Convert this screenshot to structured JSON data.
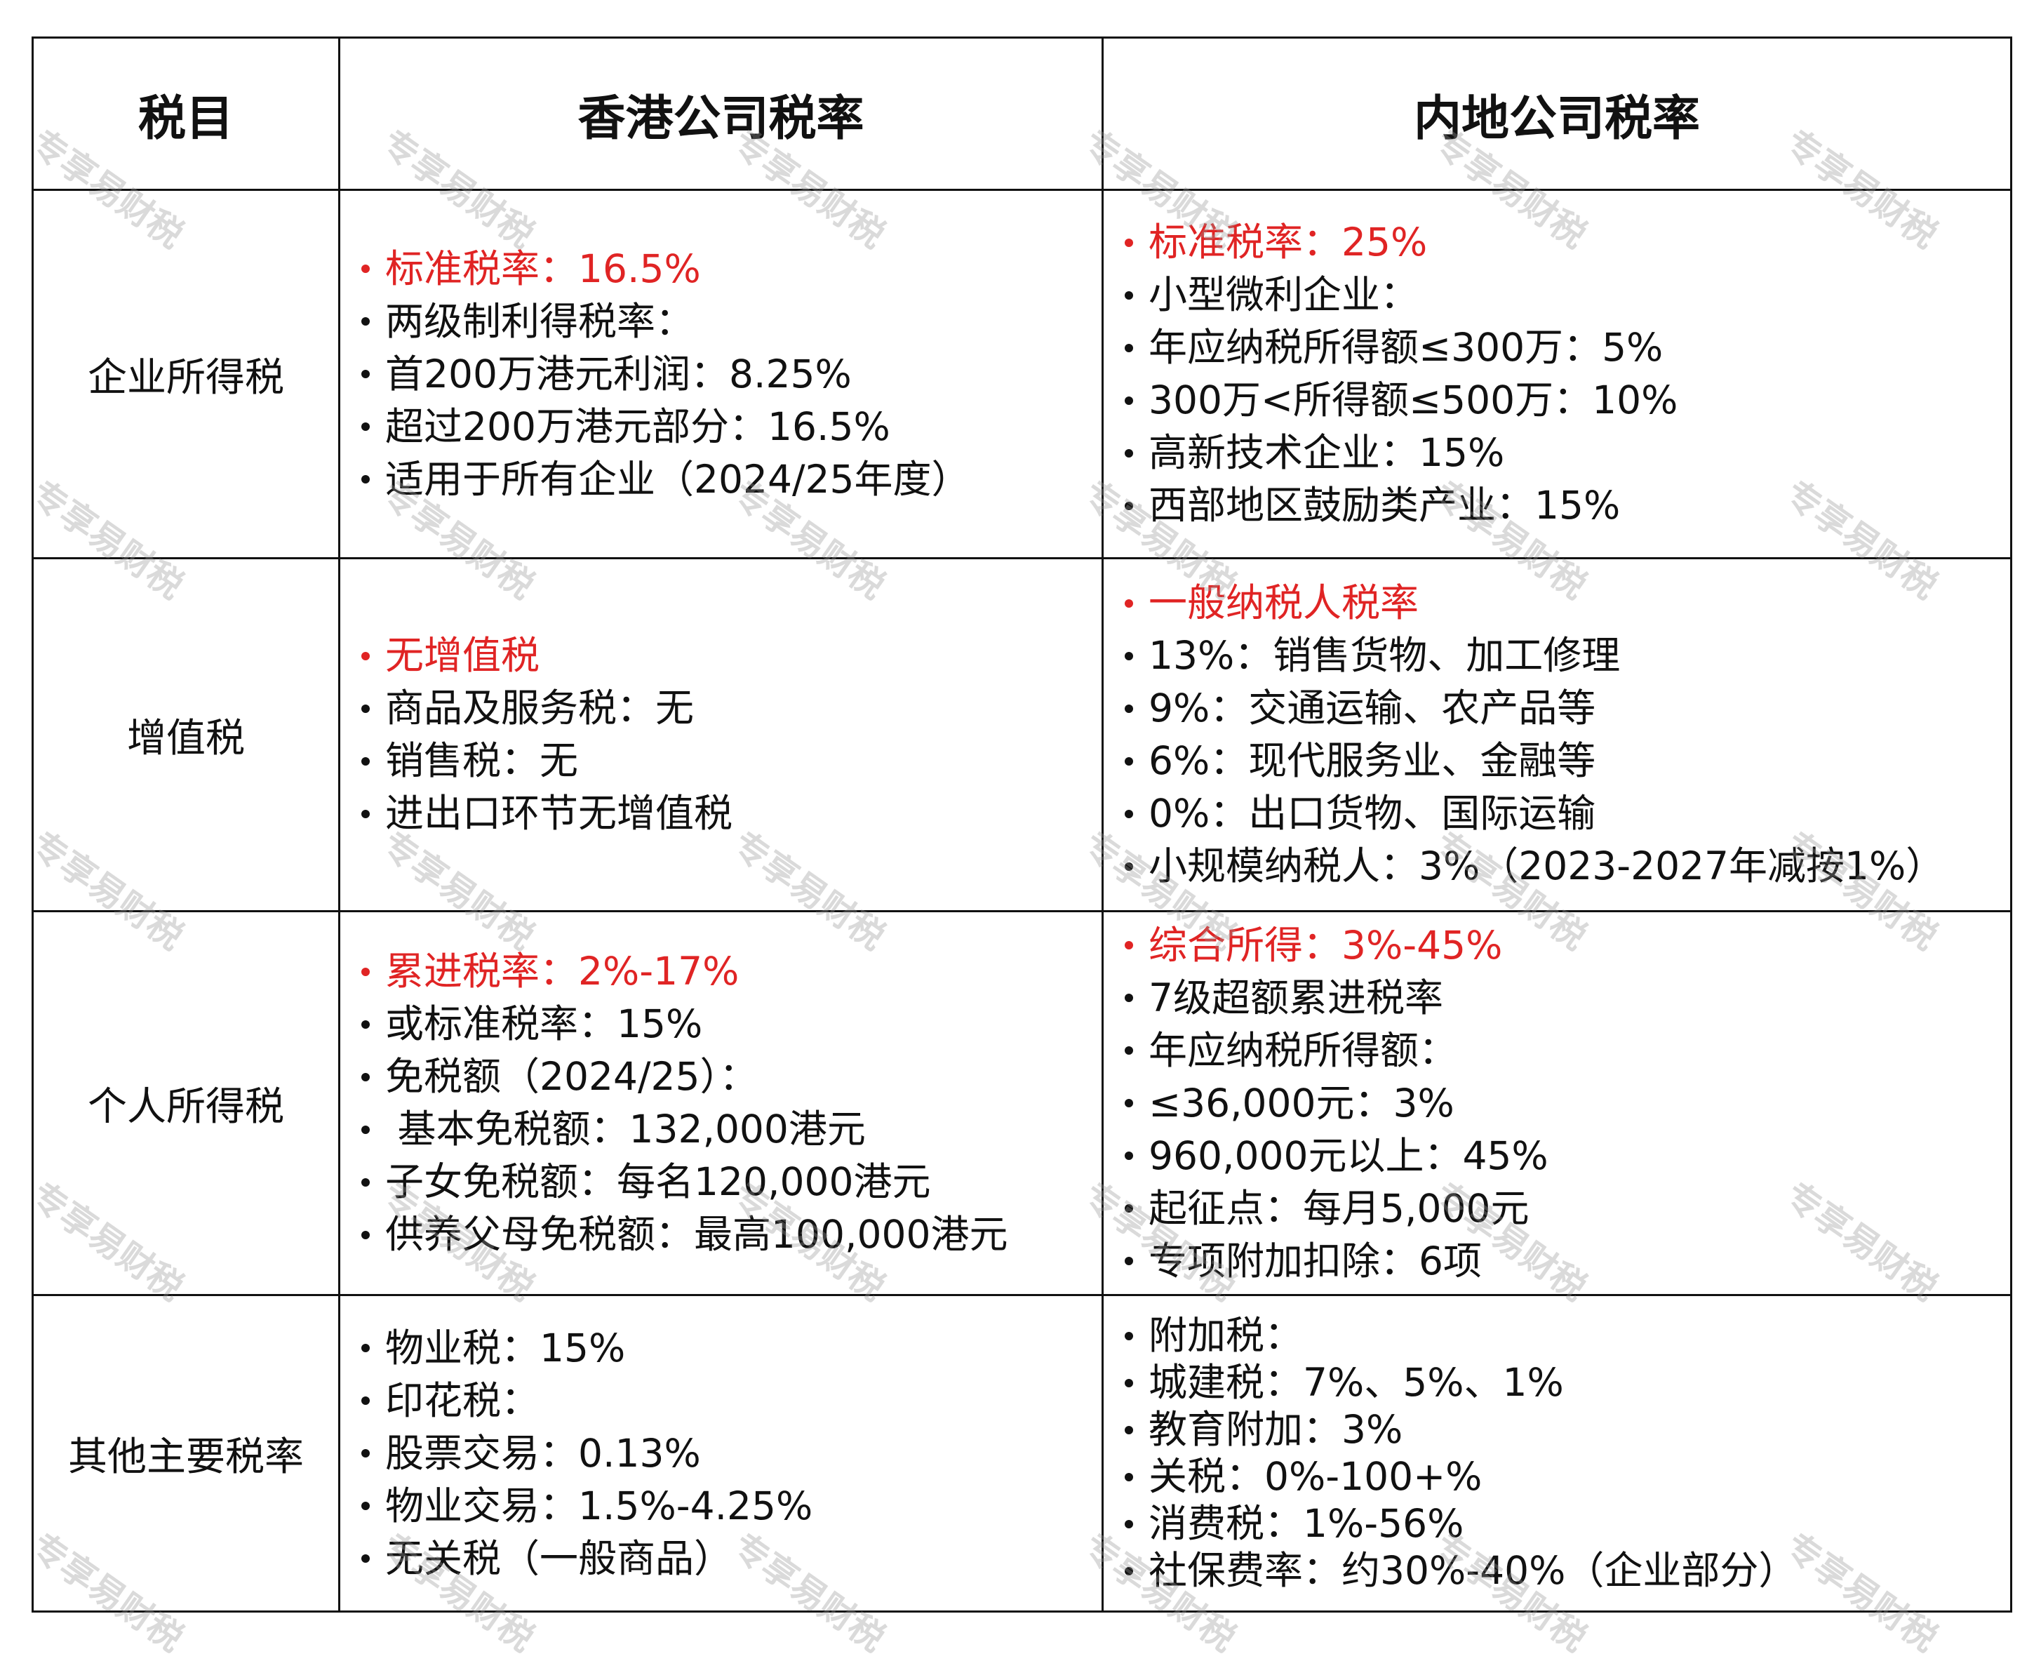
{
  "headers": [
    "税目",
    "香港公司税率",
    "内地公司税率"
  ],
  "watermark": "专享易财税",
  "colors": {
    "highlight": "#e02424",
    "text": "#111111"
  },
  "rows": [
    {
      "name": "企业所得税",
      "hk": [
        {
          "text": "标准税率：16.5%",
          "red": true
        },
        {
          "text": "两级制利得税率："
        },
        {
          "text": "首200万港元利润：8.25%"
        },
        {
          "text": "超过200万港元部分：16.5%"
        },
        {
          "text": "适用于所有企业（2024/25年度）"
        }
      ],
      "cn": [
        {
          "text": "标准税率：25%",
          "red": true
        },
        {
          "text": "小型微利企业："
        },
        {
          "text": "年应纳税所得额≤300万：5%"
        },
        {
          "text": "300万<所得额≤500万：10%"
        },
        {
          "text": "高新技术企业：15%"
        },
        {
          "text": "西部地区鼓励类产业：15%"
        }
      ]
    },
    {
      "name": "增值税",
      "hk": [
        {
          "text": "无增值税",
          "red": true
        },
        {
          "text": "商品及服务税：无"
        },
        {
          "text": "销售税：无"
        },
        {
          "text": "进出口环节无增值税"
        }
      ],
      "cn": [
        {
          "text": "一般纳税人税率",
          "red": true
        },
        {
          "text": "13%：销售货物、加工修理"
        },
        {
          "text": "9%：交通运输、农产品等"
        },
        {
          "text": "6%：现代服务业、金融等"
        },
        {
          "text": "0%：出口货物、国际运输"
        },
        {
          "text": "小规模纳税人：3%（2023-2027年减按1%）"
        }
      ]
    },
    {
      "name": "个人所得税",
      "hk": [
        {
          "text": "累进税率：2%-17%",
          "red": true
        },
        {
          "text": "或标准税率：15%"
        },
        {
          "text": "免税额（2024/25）："
        },
        {
          "text": " 基本免税额：132,000港元"
        },
        {
          "text": "子女免税额：每名120,000港元"
        },
        {
          "text": "供养父母免税额：最高100,000港元"
        }
      ],
      "cn": [
        {
          "text": "综合所得：3%-45%",
          "red": true
        },
        {
          "text": "7级超额累进税率"
        },
        {
          "text": "年应纳税所得额："
        },
        {
          "text": "≤36,000元：3%"
        },
        {
          "text": "960,000元以上：45%"
        },
        {
          "text": "起征点：每月5,000元"
        },
        {
          "text": "专项附加扣除：6项"
        }
      ]
    },
    {
      "name": "其他主要税率",
      "hk": [
        {
          "text": "物业税：15%"
        },
        {
          "text": "印花税："
        },
        {
          "text": "股票交易：0.13%"
        },
        {
          "text": "物业交易：1.5%-4.25%"
        },
        {
          "text": "无关税（一般商品）"
        }
      ],
      "cn": [
        {
          "text": "附加税："
        },
        {
          "text": "城建税：7%、5%、1%"
        },
        {
          "text": "教育附加：3%"
        },
        {
          "text": "关税：0%-100+%"
        },
        {
          "text": "消费税：1%-56%"
        },
        {
          "text": "社保费率：约30%-40%（企业部分）"
        }
      ]
    }
  ]
}
